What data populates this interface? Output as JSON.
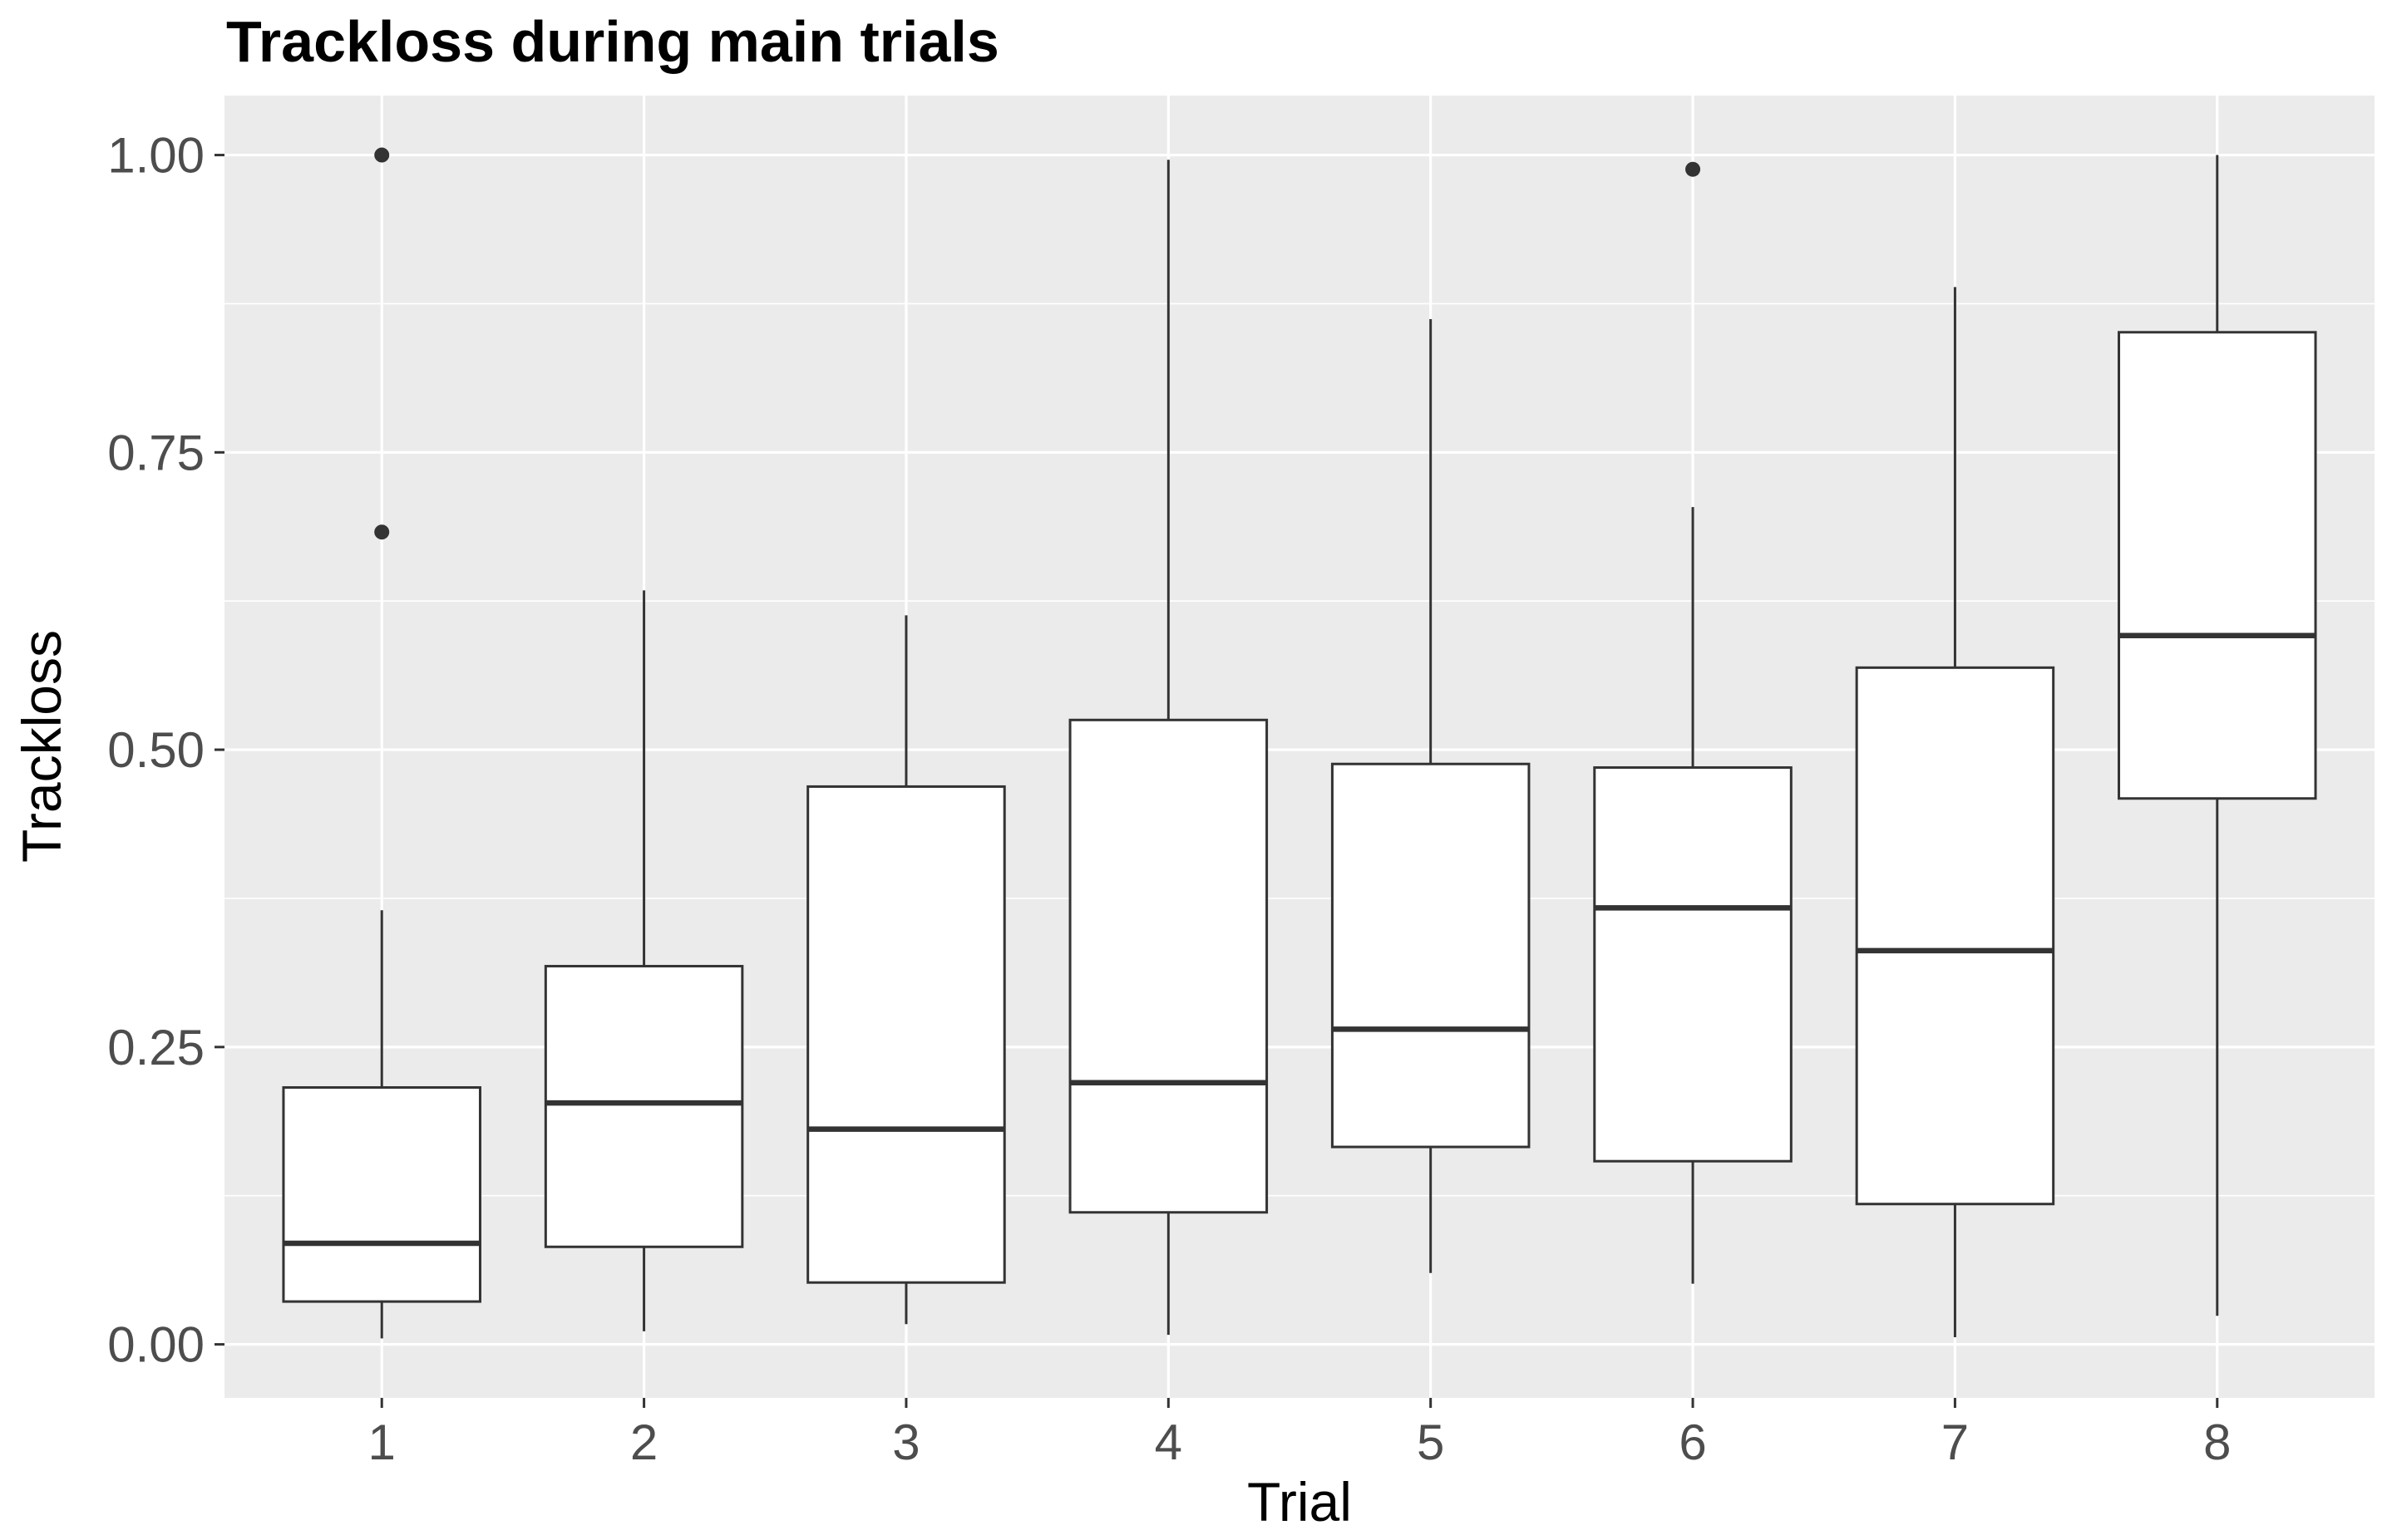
{
  "chart_data": {
    "type": "boxplot",
    "title": "Trackloss during main trials",
    "xlabel": "Trial",
    "ylabel": "Trackloss",
    "categories": [
      "1",
      "2",
      "3",
      "4",
      "5",
      "6",
      "7",
      "8"
    ],
    "y_ticks": [
      "0.00",
      "0.25",
      "0.50",
      "0.75",
      "1.00"
    ],
    "y_tick_values": [
      0,
      0.25,
      0.5,
      0.75,
      1.0
    ],
    "ylim": [
      -0.045,
      1.05
    ],
    "grid": true,
    "legend": "none",
    "boxes": [
      {
        "trial": "1",
        "whisker_low": 0.005,
        "q1": 0.036,
        "median": 0.085,
        "q3": 0.216,
        "whisker_high": 0.365,
        "outliers": [
          0.683,
          1.0
        ]
      },
      {
        "trial": "2",
        "whisker_low": 0.011,
        "q1": 0.082,
        "median": 0.203,
        "q3": 0.318,
        "whisker_high": 0.634,
        "outliers": []
      },
      {
        "trial": "3",
        "whisker_low": 0.017,
        "q1": 0.052,
        "median": 0.181,
        "q3": 0.469,
        "whisker_high": 0.613,
        "outliers": []
      },
      {
        "trial": "4",
        "whisker_low": 0.008,
        "q1": 0.111,
        "median": 0.22,
        "q3": 0.525,
        "whisker_high": 0.996,
        "outliers": []
      },
      {
        "trial": "5",
        "whisker_low": 0.06,
        "q1": 0.166,
        "median": 0.265,
        "q3": 0.488,
        "whisker_high": 0.862,
        "outliers": []
      },
      {
        "trial": "6",
        "whisker_low": 0.051,
        "q1": 0.154,
        "median": 0.367,
        "q3": 0.485,
        "whisker_high": 0.704,
        "outliers": [
          0.988
        ]
      },
      {
        "trial": "7",
        "whisker_low": 0.006,
        "q1": 0.118,
        "median": 0.331,
        "q3": 0.569,
        "whisker_high": 0.889,
        "outliers": []
      },
      {
        "trial": "8",
        "whisker_low": 0.024,
        "q1": 0.459,
        "median": 0.596,
        "q3": 0.851,
        "whisker_high": 1.0,
        "outliers": []
      }
    ],
    "colors": {
      "panel_background": "#ebebeb",
      "grid": "#ffffff",
      "box_fill": "#ffffff",
      "box_line": "#333333",
      "tick_label": "#4d4d4d",
      "text": "#000000"
    }
  }
}
